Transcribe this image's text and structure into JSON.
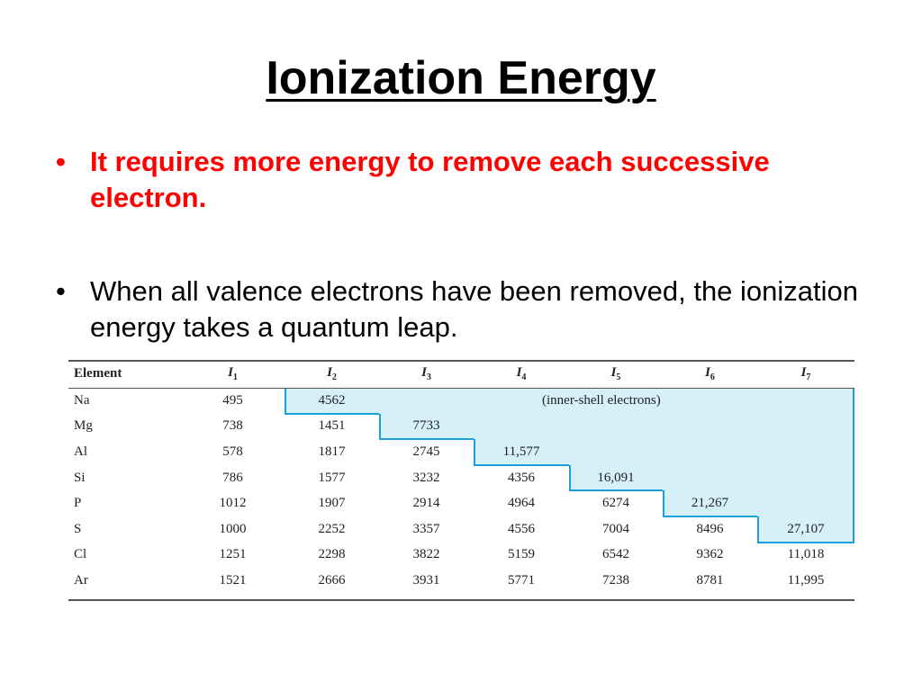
{
  "slide": {
    "title": "Ionization Energy",
    "bullets": [
      {
        "marker": "•",
        "text": "It requires more energy to remove each successive electron."
      },
      {
        "marker": "•",
        "text": "When all valence electrons have been removed, the ionization energy takes a quantum leap."
      }
    ]
  },
  "table": {
    "headers": [
      {
        "main": "Element",
        "sub": ""
      },
      {
        "main": "I",
        "sub": "1"
      },
      {
        "main": "I",
        "sub": "2"
      },
      {
        "main": "I",
        "sub": "3"
      },
      {
        "main": "I",
        "sub": "4"
      },
      {
        "main": "I",
        "sub": "5"
      },
      {
        "main": "I",
        "sub": "6"
      },
      {
        "main": "I",
        "sub": "7"
      }
    ],
    "inner_shell_label": "(inner-shell electrons)",
    "rows": [
      {
        "element": "Na",
        "values": [
          "495",
          "4562",
          "",
          "",
          "",
          "",
          ""
        ]
      },
      {
        "element": "Mg",
        "values": [
          "738",
          "1451",
          "7733",
          "",
          "",
          "",
          ""
        ]
      },
      {
        "element": "Al",
        "values": [
          "578",
          "1817",
          "2745",
          "11,577",
          "",
          "",
          ""
        ]
      },
      {
        "element": "Si",
        "values": [
          "786",
          "1577",
          "3232",
          "4356",
          "16,091",
          "",
          ""
        ]
      },
      {
        "element": "P",
        "values": [
          "1012",
          "1907",
          "2914",
          "4964",
          "6274",
          "21,267",
          ""
        ]
      },
      {
        "element": "S",
        "values": [
          "1000",
          "2252",
          "3357",
          "4556",
          "7004",
          "8496",
          "27,107"
        ]
      },
      {
        "element": "Cl",
        "values": [
          "1251",
          "2298",
          "3822",
          "5159",
          "6542",
          "9362",
          "11,018"
        ]
      },
      {
        "element": "Ar",
        "values": [
          "1521",
          "2666",
          "3931",
          "5771",
          "7238",
          "8781",
          "11,995"
        ]
      }
    ],
    "colors": {
      "highlight": "#d6f0fa",
      "highlight_border": "#1aa0dc",
      "bullet_accent": "#ff0000"
    }
  }
}
